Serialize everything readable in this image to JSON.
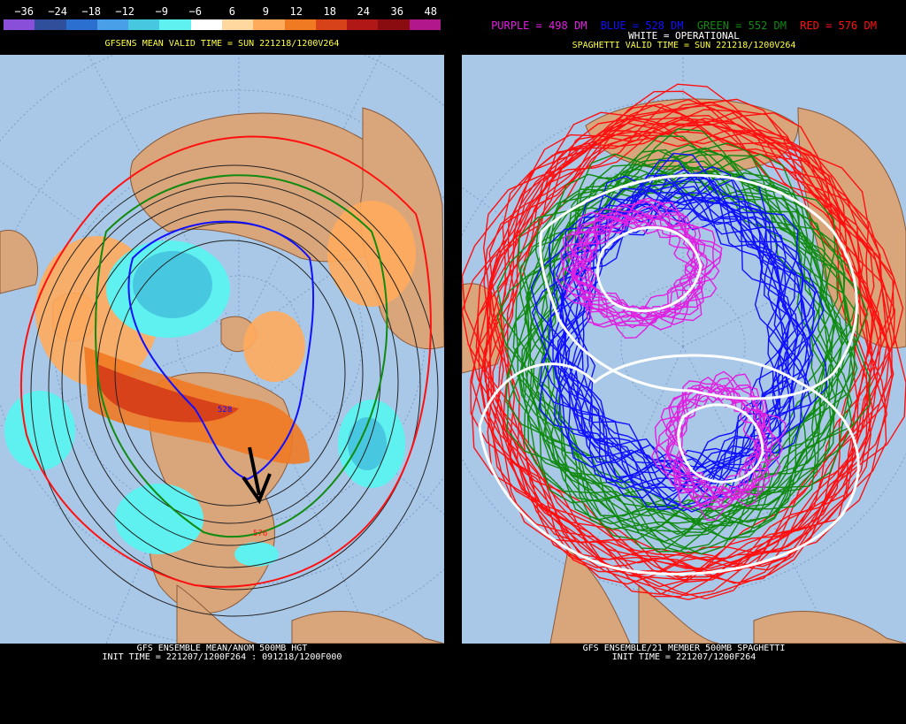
{
  "colorbar": {
    "ticks": [
      "−36",
      "−24",
      "−18",
      "−12",
      "−9",
      "−6",
      "6",
      "9",
      "12",
      "18",
      "24",
      "36",
      "48"
    ],
    "colors": [
      "#8a4fd8",
      "#2f4f9a",
      "#2b6fd0",
      "#4aa0e8",
      "#48c8e0",
      "#5ff0f0",
      "#ffffff",
      "#ffd8a0",
      "#ffab5c",
      "#f07a22",
      "#d8421a",
      "#b01818",
      "#8a0c10",
      "#b0188c"
    ]
  },
  "left": {
    "valid_time": "GFSENS MEAN VALID TIME = SUN 221218/1200V264",
    "footer_line1": "GFS ENSEMBLE MEAN/ANOM 500MB HGT",
    "footer_line2": "INIT TIME = 221207/1200F264 : 091218/1200F000",
    "contour_label_528": "528",
    "contour_label_576": "576",
    "arrow": "black-arrow-icon"
  },
  "right": {
    "legend_purple": "PURPLE = 498 DM",
    "legend_blue": "BLUE = 528 DM",
    "legend_green": "GREEN = 552 DM",
    "legend_red": "RED = 576 DM",
    "legend_white": "WHITE = OPERATIONAL",
    "valid_time": "SPAGHETTI VALID TIME = SUN 221218/1200V264",
    "footer_line1": "GFS ENSEMBLE/21 MEMBER 500MB SPAGHETTI",
    "footer_line2": "INIT TIME = 221207/1200F264"
  },
  "colors": {
    "ocean": "#a9c8e8",
    "land": "#d9a57a",
    "purple": "#e020e0",
    "blue": "#1010ff",
    "green": "#108a10",
    "red": "#ff1010",
    "white": "#ffffff",
    "yellow": "#ffff40"
  }
}
